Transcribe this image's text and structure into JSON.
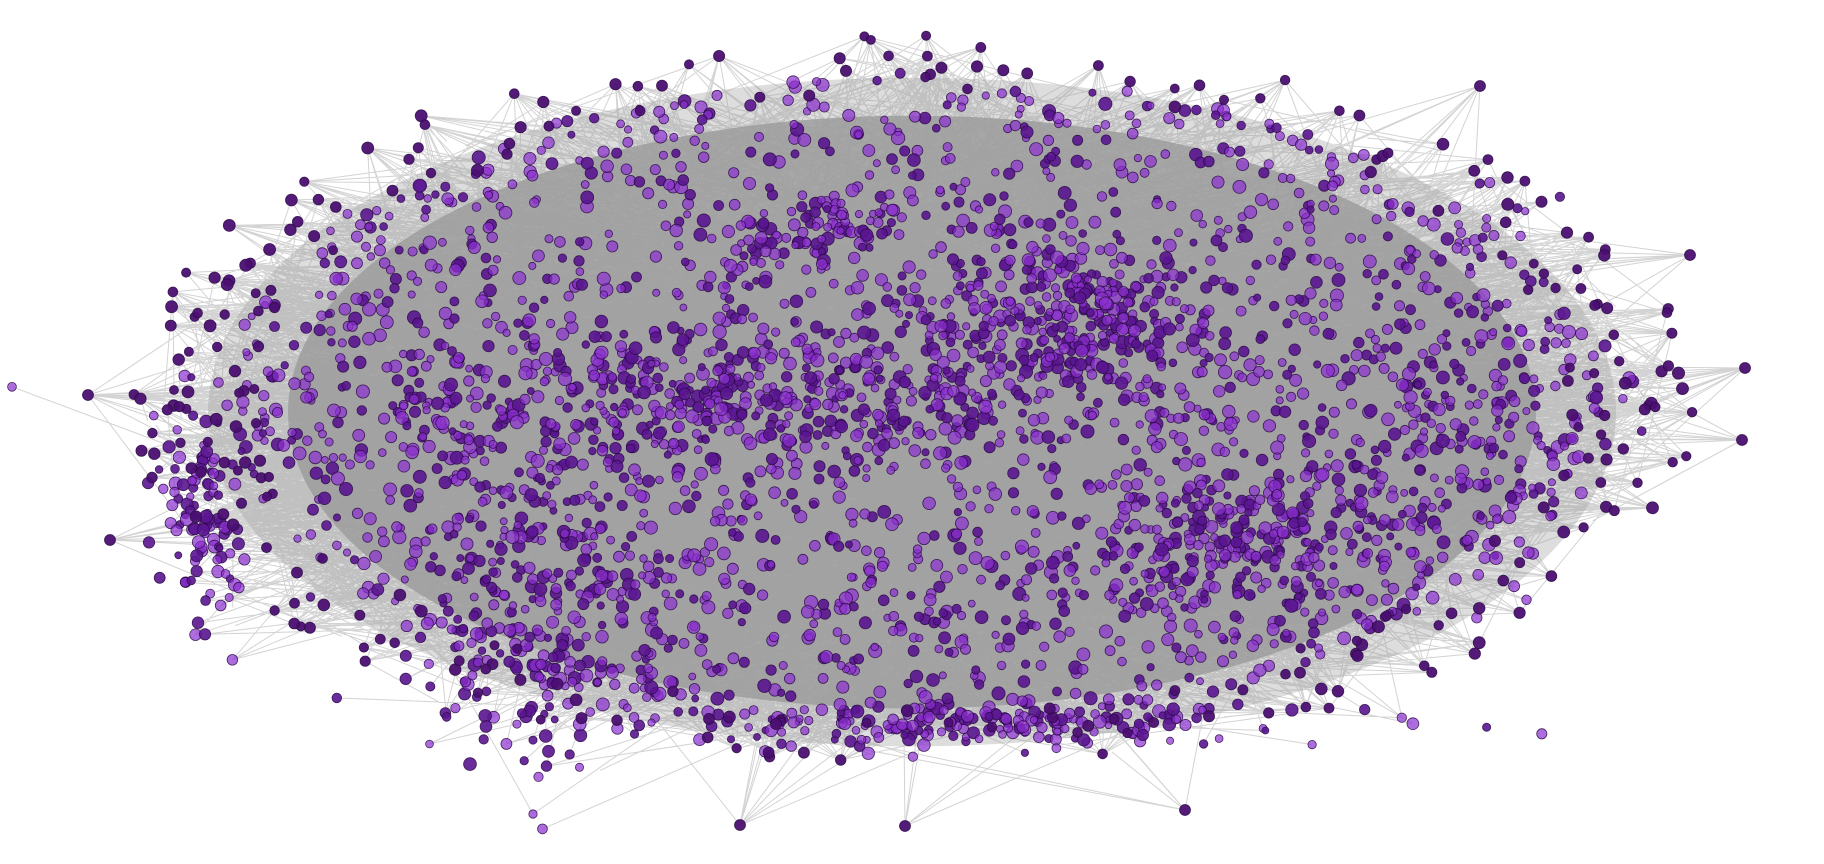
{
  "figure": {
    "kind": "network-graph",
    "labels_shown": false,
    "background_color": "#ffffff",
    "edge_color": "#9e9e9e",
    "node_fill_color": "#8b2fd0",
    "node_stroke_color": "#2a0a44",
    "peripheral_node_color": "#4b0f72"
  },
  "clusters": [
    {
      "name": "central-horizontal-cluster",
      "density": "very-high"
    },
    {
      "name": "upper-right-cluster",
      "density": "high"
    },
    {
      "name": "lower-right-cluster",
      "density": "high"
    },
    {
      "name": "lower-left-cluster",
      "density": "high"
    },
    {
      "name": "bottom-band-cluster",
      "density": "high"
    },
    {
      "name": "left-edge-cluster",
      "density": "medium"
    },
    {
      "name": "upper-left-band-cluster",
      "density": "medium"
    },
    {
      "name": "far-right-cluster",
      "density": "medium"
    }
  ]
}
